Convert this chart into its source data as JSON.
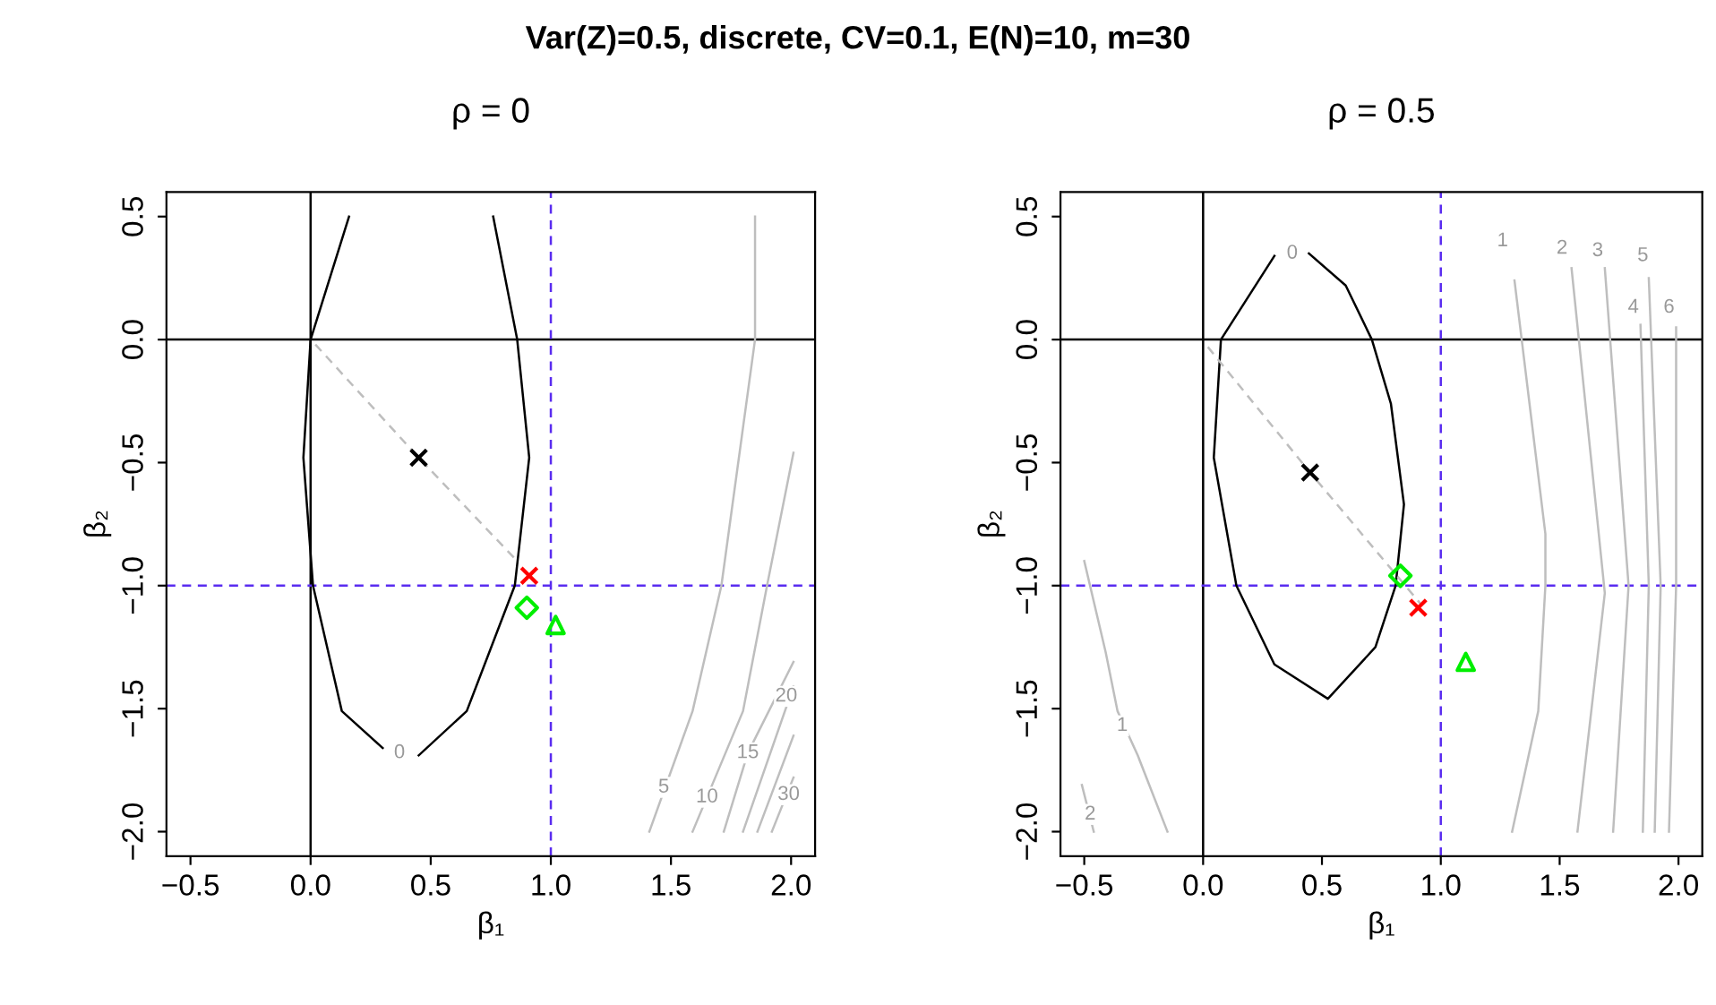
{
  "chart_data": [
    {
      "type": "line",
      "title": "ρ = 0",
      "xlabel": "β₁",
      "ylabel": "β₂",
      "xlim": [
        -0.6,
        2.1
      ],
      "ylim": [
        -2.1,
        0.6
      ],
      "xticks": [
        {
          "value": -0.5,
          "label": "−0.5"
        },
        {
          "value": 0,
          "label": "0.0"
        },
        {
          "value": 0.5,
          "label": "0.5"
        },
        {
          "value": 1,
          "label": "1.0"
        },
        {
          "value": 1.5,
          "label": "1.5"
        },
        {
          "value": 2,
          "label": "2.0"
        }
      ],
      "yticks": [
        {
          "value": -2,
          "label": "−2.0"
        },
        {
          "value": -1.5,
          "label": "−1.5"
        },
        {
          "value": -1,
          "label": "−1.0"
        },
        {
          "value": -0.5,
          "label": "−0.5"
        },
        {
          "value": 0,
          "label": "0.0"
        },
        {
          "value": 0.5,
          "label": "0.5"
        }
      ],
      "grid": false,
      "ref_lines": [
        {
          "axis": "x",
          "value": 0,
          "color": "#000000",
          "line_style": "solid"
        },
        {
          "axis": "y",
          "value": 0,
          "color": "#000000",
          "line_style": "solid"
        },
        {
          "axis": "x",
          "value": 1,
          "color": "#5a2cf0",
          "line_style": "dashed"
        },
        {
          "axis": "y",
          "value": -1,
          "color": "#5a2cf0",
          "line_style": "dashed"
        }
      ],
      "series": [
        {
          "color": "#000000",
          "x": [
            0.3,
            0.13,
            0.01,
            -0.03,
            0.0,
            0.16
          ],
          "values": [
            -1.66,
            -1.51,
            -1.0,
            -0.48,
            0.0,
            0.5
          ]
        },
        {
          "color": "#000000",
          "x": [
            0.45,
            0.65,
            0.85,
            0.91,
            0.86,
            0.76
          ],
          "values": [
            -1.69,
            -1.51,
            -1.0,
            -0.48,
            0.0,
            0.5
          ]
        },
        {
          "type": "line",
          "color": "#bebebe",
          "x": [
            1.85,
            1.85,
            1.71,
            1.59,
            1.41
          ],
          "values": [
            0.5,
            0.0,
            -1.0,
            -1.51,
            -2.0
          ]
        },
        {
          "type": "line",
          "color": "#bebebe",
          "x": [
            2.01,
            1.9,
            1.8,
            1.59
          ],
          "values": [
            -0.46,
            -1.0,
            -1.51,
            -2.0
          ]
        },
        {
          "type": "line",
          "color": "#bebebe",
          "x": [
            2.01,
            1.82,
            1.72
          ],
          "values": [
            -1.31,
            -1.68,
            -2.0
          ]
        },
        {
          "type": "line",
          "color": "#bebebe",
          "x": [
            2.01,
            1.8
          ],
          "values": [
            -1.41,
            -2.0
          ]
        },
        {
          "type": "line",
          "color": "#bebebe",
          "x": [
            2.01,
            1.86
          ],
          "values": [
            -1.61,
            -2.0
          ]
        },
        {
          "type": "line",
          "color": "#bebebe",
          "x": [
            2.01,
            1.92
          ],
          "values": [
            -1.78,
            -2.0
          ]
        },
        {
          "type": "line",
          "color": "#bebebe",
          "line_style": "dashed",
          "x": [
            0.02,
            0.45,
            0.85
          ],
          "values": [
            -0.02,
            -0.48,
            -0.89
          ]
        },
        {
          "type": "scatter",
          "marker": "cross",
          "color": "#000000",
          "x": [
            0.45
          ],
          "values": [
            -0.48
          ]
        },
        {
          "type": "scatter",
          "marker": "cross",
          "color": "#ff0000",
          "x": [
            0.91
          ],
          "values": [
            -0.96
          ]
        },
        {
          "type": "scatter",
          "marker": "diamond",
          "color": "#00ee00",
          "x": [
            0.9
          ],
          "values": [
            -1.09
          ]
        },
        {
          "type": "scatter",
          "marker": "triangle",
          "color": "#00ee00",
          "x": [
            1.02
          ],
          "values": [
            -1.16
          ]
        }
      ],
      "annotations": [
        "Var(Z)=0.5, discrete, CV=0.1, E(N)=10, m=30",
        {
          "text": "0",
          "x": 0.37,
          "y": -1.68
        },
        {
          "text": "5",
          "x": 1.47,
          "y": -1.82
        },
        {
          "text": "10",
          "x": 1.65,
          "y": -1.86
        },
        {
          "text": "15",
          "x": 1.82,
          "y": -1.68
        },
        {
          "text": "20",
          "x": 1.98,
          "y": -1.45
        },
        {
          "text": "30",
          "x": 1.99,
          "y": -1.85
        }
      ]
    },
    {
      "type": "line",
      "title": "ρ = 0.5",
      "xlabel": "β₁",
      "ylabel": "β₂",
      "xlim": [
        -0.6,
        2.1
      ],
      "ylim": [
        -2.1,
        0.6
      ],
      "xticks": [
        {
          "value": -0.5,
          "label": "−0.5"
        },
        {
          "value": 0,
          "label": "0.0"
        },
        {
          "value": 0.5,
          "label": "0.5"
        },
        {
          "value": 1,
          "label": "1.0"
        },
        {
          "value": 1.5,
          "label": "1.5"
        },
        {
          "value": 2,
          "label": "2.0"
        }
      ],
      "yticks": [
        {
          "value": -2,
          "label": "−2.0"
        },
        {
          "value": -1.5,
          "label": "−1.5"
        },
        {
          "value": -1,
          "label": "−1.0"
        },
        {
          "value": -0.5,
          "label": "−0.5"
        },
        {
          "value": 0,
          "label": "0.0"
        },
        {
          "value": 0.5,
          "label": "0.5"
        }
      ],
      "grid": false,
      "ref_lines": [
        {
          "axis": "x",
          "value": 0,
          "color": "#000000",
          "line_style": "solid"
        },
        {
          "axis": "y",
          "value": 0,
          "color": "#000000",
          "line_style": "solid"
        },
        {
          "axis": "x",
          "value": 1,
          "color": "#5a2cf0",
          "line_style": "dashed"
        },
        {
          "axis": "y",
          "value": -1,
          "color": "#5a2cf0",
          "line_style": "dashed"
        }
      ],
      "series": [
        {
          "color": "#000000",
          "x": [
            0.445,
            0.6,
            0.71,
            0.79,
            0.845,
            0.81,
            0.725,
            0.525,
            0.3,
            0.14,
            0.045,
            0.075,
            0.3
          ],
          "values": [
            0.35,
            0.22,
            0.0,
            -0.26,
            -0.67,
            -1.0,
            -1.25,
            -1.46,
            -1.32,
            -1.0,
            -0.48,
            0.0,
            0.34
          ]
        },
        {
          "type": "line",
          "color": "#bebebe",
          "x": [
            1.31,
            1.44,
            1.44,
            1.41,
            1.3
          ],
          "values": [
            0.24,
            -0.79,
            -1.0,
            -1.51,
            -2.0
          ]
        },
        {
          "type": "line",
          "color": "#bebebe",
          "x": [
            1.55,
            1.69,
            1.575
          ],
          "values": [
            0.29,
            -1.03,
            -2.0
          ]
        },
        {
          "type": "line",
          "color": "#bebebe",
          "x": [
            1.69,
            1.79,
            1.725
          ],
          "values": [
            0.29,
            -1.0,
            -2.0
          ]
        },
        {
          "type": "line",
          "color": "#bebebe",
          "x": [
            1.84,
            1.875,
            1.85
          ],
          "values": [
            0.06,
            -1.0,
            -2.0
          ]
        },
        {
          "type": "line",
          "color": "#bebebe",
          "x": [
            1.875,
            1.925,
            1.9
          ],
          "values": [
            0.25,
            -1.0,
            -2.0
          ]
        },
        {
          "type": "line",
          "color": "#bebebe",
          "x": [
            1.99,
            1.99,
            1.96
          ],
          "values": [
            0.05,
            -1.0,
            -2.0
          ]
        },
        {
          "type": "line",
          "color": "#bebebe",
          "x": [
            -0.5,
            -0.41,
            -0.36,
            -0.275,
            -0.15
          ],
          "values": [
            -0.9,
            -1.27,
            -1.51,
            -1.69,
            -2.0
          ]
        },
        {
          "type": "line",
          "color": "#bebebe",
          "x": [
            -0.51,
            -0.46
          ],
          "values": [
            -1.81,
            -2.0
          ]
        },
        {
          "type": "line",
          "color": "#bebebe",
          "line_style": "dashed",
          "x": [
            0.02,
            0.45,
            0.92
          ],
          "values": [
            -0.03,
            -0.54,
            -1.08
          ]
        },
        {
          "type": "scatter",
          "marker": "cross",
          "color": "#000000",
          "x": [
            0.45
          ],
          "values": [
            -0.54
          ]
        },
        {
          "type": "scatter",
          "marker": "diamond",
          "color": "#00ee00",
          "x": [
            0.83
          ],
          "values": [
            -0.96
          ]
        },
        {
          "type": "scatter",
          "marker": "cross",
          "color": "#ff0000",
          "x": [
            0.905
          ],
          "values": [
            -1.09
          ]
        },
        {
          "type": "scatter",
          "marker": "triangle",
          "color": "#00ee00",
          "x": [
            1.105
          ],
          "values": [
            -1.31
          ]
        }
      ],
      "annotations": [
        {
          "text": "0",
          "x": 0.375,
          "y": 0.35
        },
        {
          "text": "1",
          "x": 1.26,
          "y": 0.4
        },
        {
          "text": "2",
          "x": 1.51,
          "y": 0.37
        },
        {
          "text": "3",
          "x": 1.66,
          "y": 0.36
        },
        {
          "text": "4",
          "x": 1.81,
          "y": 0.13
        },
        {
          "text": "5",
          "x": 1.85,
          "y": 0.34
        },
        {
          "text": "6",
          "x": 1.96,
          "y": 0.13
        },
        {
          "text": "1",
          "x": -0.34,
          "y": -1.57
        },
        {
          "text": "2",
          "x": -0.475,
          "y": -1.93
        }
      ]
    }
  ]
}
